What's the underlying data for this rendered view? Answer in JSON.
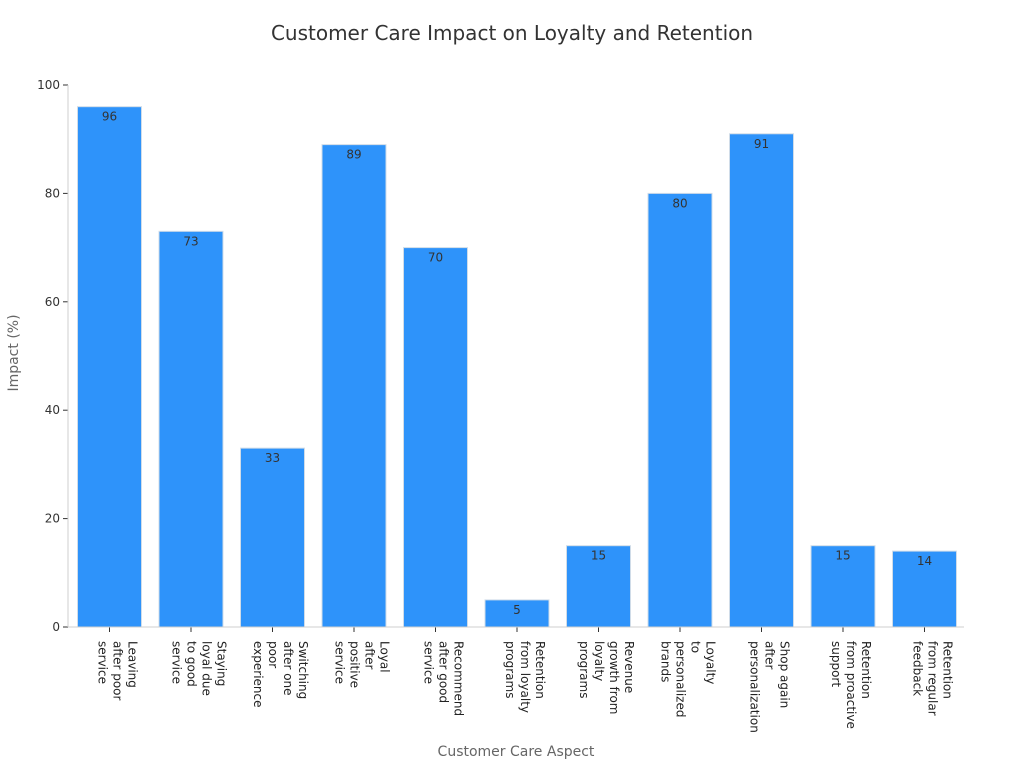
{
  "chart_data": {
    "type": "bar",
    "title": "Customer Care Impact on Loyalty and Retention",
    "xlabel": "Customer Care Aspect",
    "ylabel": "Impact (%)",
    "ylim": [
      0,
      100
    ],
    "yticks": [
      0,
      20,
      40,
      60,
      80,
      100
    ],
    "categories": [
      [
        "Leaving",
        "after poor",
        "service"
      ],
      [
        "Staying",
        "loyal due",
        "to good",
        "service"
      ],
      [
        "Switching",
        "after one",
        "poor",
        "experience"
      ],
      [
        "Loyal",
        "after",
        "positive",
        "service"
      ],
      [
        "Recommend",
        "after good",
        "service"
      ],
      [
        "Retention",
        "from loyalty",
        "programs"
      ],
      [
        "Revenue",
        "growth from",
        "loyalty",
        "programs"
      ],
      [
        "Loyalty",
        "to",
        "personalized",
        "brands"
      ],
      [
        "Shop again",
        "after",
        "personalization"
      ],
      [
        "Retention",
        "from proactive",
        "support"
      ],
      [
        "Retention",
        "from regular",
        "feedback"
      ]
    ],
    "values": [
      96,
      73,
      33,
      89,
      70,
      5,
      15,
      80,
      91,
      15,
      14
    ],
    "bar_color": "#2e93fa",
    "bar_edge_color": "#d0dce8"
  }
}
